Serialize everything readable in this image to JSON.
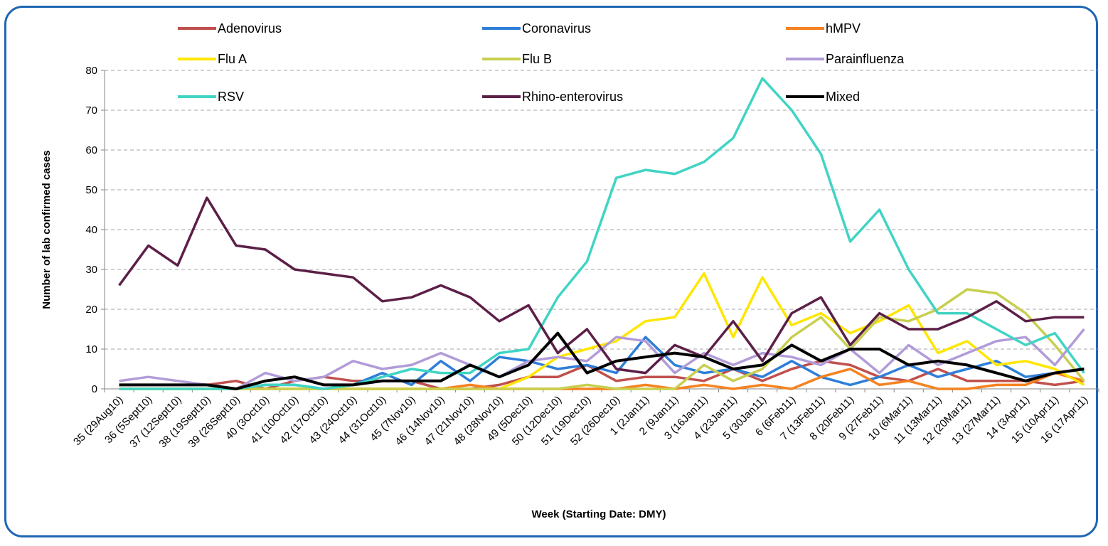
{
  "chart_data": {
    "type": "line",
    "title": "",
    "xlabel": "Week (Starting Date: DMY)",
    "ylabel": "Number of lab confirmed cases",
    "ylim": [
      0,
      80
    ],
    "yticks": [
      0,
      10,
      20,
      30,
      40,
      50,
      60,
      70,
      80
    ],
    "grid": "horizontal dashed",
    "legend_position": "top",
    "categories": [
      "35 (29Aug10)",
      "36 (5Sept10)",
      "37 (12Sept10)",
      "38 (19Sept10)",
      "39 (26Sept10)",
      "40 (3Oct10)",
      "41 (10Oct10)",
      "42 (17Oct10)",
      "43 (24Oct10)",
      "44 (31Oct10)",
      "45 (7Nov10)",
      "46 (14Nov10)",
      "47 (21Nov10)",
      "48 (28Nov10)",
      "49 (5Dec10)",
      "50 (12Dec10)",
      "51 (19Dec10)",
      "52 (26Dec10)",
      "1 (2Jan11)",
      "2 (9Jan11)",
      "3 (16Jan11)",
      "4 (23Jan11)",
      "5 (30Jan11)",
      "6 (6Feb11)",
      "7 (13Feb11)",
      "8 (20Feb11)",
      "9 (27Feb11)",
      "10 (6Mar11)",
      "11 (13Mar11)",
      "12 (20Mar11)",
      "13 (27Mar11)",
      "14 (3Apr11)",
      "15 (10Apr11)",
      "16 (17Apr11)"
    ],
    "series": [
      {
        "name": "Adenovirus",
        "color": "#c0504d",
        "values": [
          1,
          1,
          1,
          1,
          2,
          0,
          2,
          3,
          2,
          2,
          2,
          0,
          0,
          1,
          3,
          3,
          6,
          2,
          3,
          3,
          2,
          5,
          2,
          5,
          7,
          6,
          3,
          2,
          5,
          2,
          2,
          2,
          1,
          2
        ]
      },
      {
        "name": "Coronavirus",
        "color": "#2f7ed8",
        "values": [
          0,
          0,
          0,
          0,
          0,
          1,
          1,
          0,
          1,
          4,
          1,
          7,
          2,
          8,
          7,
          5,
          6,
          4,
          13,
          6,
          4,
          5,
          3,
          7,
          3,
          1,
          3,
          6,
          3,
          5,
          7,
          3,
          4,
          5
        ]
      },
      {
        "name": "hMPV",
        "color": "#f58220",
        "values": [
          0,
          0,
          0,
          0,
          0,
          0,
          0,
          0,
          0,
          0,
          0,
          0,
          1,
          0,
          0,
          0,
          0,
          0,
          1,
          0,
          1,
          0,
          1,
          0,
          3,
          5,
          1,
          2,
          0,
          0,
          1,
          1,
          4,
          2
        ]
      },
      {
        "name": "Flu A",
        "color": "#ffe600",
        "values": [
          0,
          0,
          0,
          0,
          0,
          0,
          0,
          0,
          0,
          0,
          0,
          0,
          0,
          0,
          3,
          8,
          10,
          12,
          17,
          18,
          29,
          13,
          28,
          16,
          19,
          14,
          17,
          21,
          9,
          12,
          6,
          7,
          5,
          1
        ]
      },
      {
        "name": "Flu B",
        "color": "#c8cf4f",
        "values": [
          0,
          0,
          0,
          0,
          0,
          0,
          0,
          0,
          0,
          0,
          0,
          0,
          0,
          0,
          0,
          0,
          1,
          0,
          0,
          0,
          6,
          2,
          5,
          13,
          18,
          10,
          18,
          17,
          20,
          25,
          24,
          19,
          11,
          2
        ]
      },
      {
        "name": "Parainfluenza",
        "color": "#b19cd9",
        "values": [
          2,
          3,
          2,
          1,
          0,
          4,
          2,
          3,
          7,
          5,
          6,
          9,
          6,
          3,
          7,
          8,
          7,
          13,
          12,
          4,
          9,
          6,
          9,
          8,
          6,
          10,
          4,
          11,
          6,
          9,
          12,
          13,
          6,
          15
        ]
      },
      {
        "name": "RSV",
        "color": "#40d4c4",
        "values": [
          0,
          0,
          0,
          0,
          0,
          1,
          1,
          0,
          1,
          3,
          5,
          4,
          4,
          9,
          10,
          23,
          32,
          53,
          55,
          54,
          57,
          63,
          78,
          70,
          59,
          37,
          45,
          30,
          19,
          19,
          15,
          11,
          14,
          4
        ]
      },
      {
        "name": "Rhino-enterovirus",
        "color": "#5c1f47",
        "values": [
          26,
          36,
          31,
          48,
          36,
          35,
          30,
          29,
          28,
          22,
          23,
          26,
          23,
          17,
          21,
          9,
          15,
          5,
          4,
          11,
          8,
          17,
          7,
          19,
          23,
          11,
          19,
          15,
          15,
          18,
          22,
          17,
          18,
          18
        ]
      },
      {
        "name": "Mixed",
        "color": "#000000",
        "values": [
          1,
          1,
          1,
          1,
          0,
          2,
          3,
          1,
          1,
          2,
          2,
          2,
          6,
          3,
          6,
          14,
          4,
          7,
          8,
          9,
          8,
          5,
          6,
          11,
          7,
          10,
          10,
          6,
          7,
          6,
          4,
          2,
          4,
          5
        ]
      }
    ]
  }
}
